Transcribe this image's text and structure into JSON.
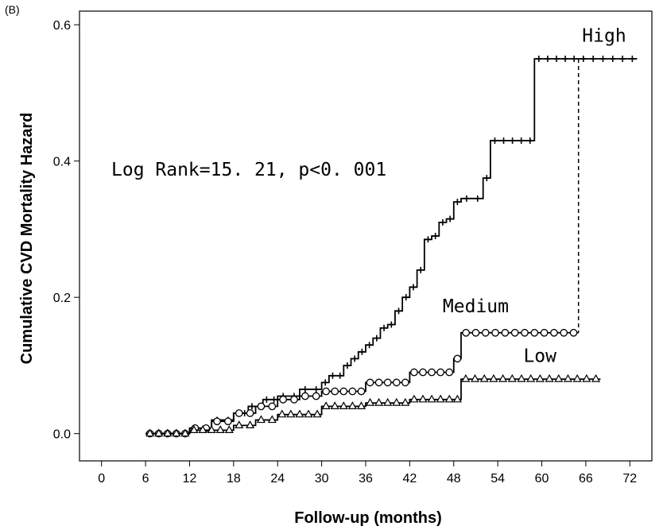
{
  "panel_label": "(B)",
  "chart_data": {
    "type": "line",
    "step": true,
    "title": "",
    "xlabel": "Follow-up (months)",
    "ylabel": "Cumulative CVD Mortality Hazard",
    "xlim": [
      -3,
      75
    ],
    "ylim": [
      -0.04,
      0.62
    ],
    "xticks": [
      0,
      6,
      12,
      18,
      24,
      30,
      36,
      42,
      48,
      54,
      60,
      66,
      72
    ],
    "xtick_labels": [
      "0",
      "6",
      "12",
      "18",
      "24",
      "30",
      "36",
      "42",
      "48",
      "54",
      "60",
      "66",
      "72"
    ],
    "yticks": [
      0.0,
      0.2,
      0.4,
      0.6
    ],
    "ytick_labels": [
      "0.0",
      "0.2",
      "0.4",
      "0.6"
    ],
    "grid": false,
    "legend": "none",
    "annotation": "Log Rank=15. 21, p<0. 001",
    "series": [
      {
        "name": "High",
        "marker": "plus",
        "color": "#000000",
        "x": [
          6,
          12,
          15,
          18,
          20,
          22,
          24,
          27,
          30,
          31,
          33,
          34,
          35,
          36,
          37,
          38,
          39,
          40,
          41,
          42,
          43,
          44,
          45,
          46,
          47,
          48,
          49,
          52,
          53,
          59,
          65,
          73
        ],
        "y": [
          0,
          0.008,
          0.02,
          0.03,
          0.04,
          0.05,
          0.055,
          0.065,
          0.075,
          0.085,
          0.1,
          0.11,
          0.12,
          0.13,
          0.14,
          0.155,
          0.16,
          0.18,
          0.2,
          0.215,
          0.24,
          0.285,
          0.29,
          0.31,
          0.315,
          0.34,
          0.345,
          0.375,
          0.43,
          0.55,
          0.55,
          0.55
        ],
        "label": "High"
      },
      {
        "name": "Medium",
        "marker": "circle",
        "color": "#000000",
        "x": [
          6,
          12,
          15,
          18,
          21,
          24,
          27,
          30,
          36,
          42,
          48,
          49,
          65
        ],
        "y": [
          0,
          0.008,
          0.018,
          0.03,
          0.04,
          0.05,
          0.055,
          0.062,
          0.075,
          0.09,
          0.11,
          0.148,
          0.148
        ],
        "label": "Medium"
      },
      {
        "name": "Low",
        "marker": "triangle",
        "color": "#000000",
        "x": [
          6,
          12,
          18,
          21,
          24,
          30,
          36,
          42,
          48,
          49,
          68
        ],
        "y": [
          0,
          0.005,
          0.012,
          0.02,
          0.028,
          0.04,
          0.045,
          0.05,
          0.05,
          0.08,
          0.08
        ],
        "label": "Low"
      }
    ],
    "dashed_drop": {
      "x": 65,
      "y_from": 0.55,
      "y_to": 0.148
    }
  }
}
